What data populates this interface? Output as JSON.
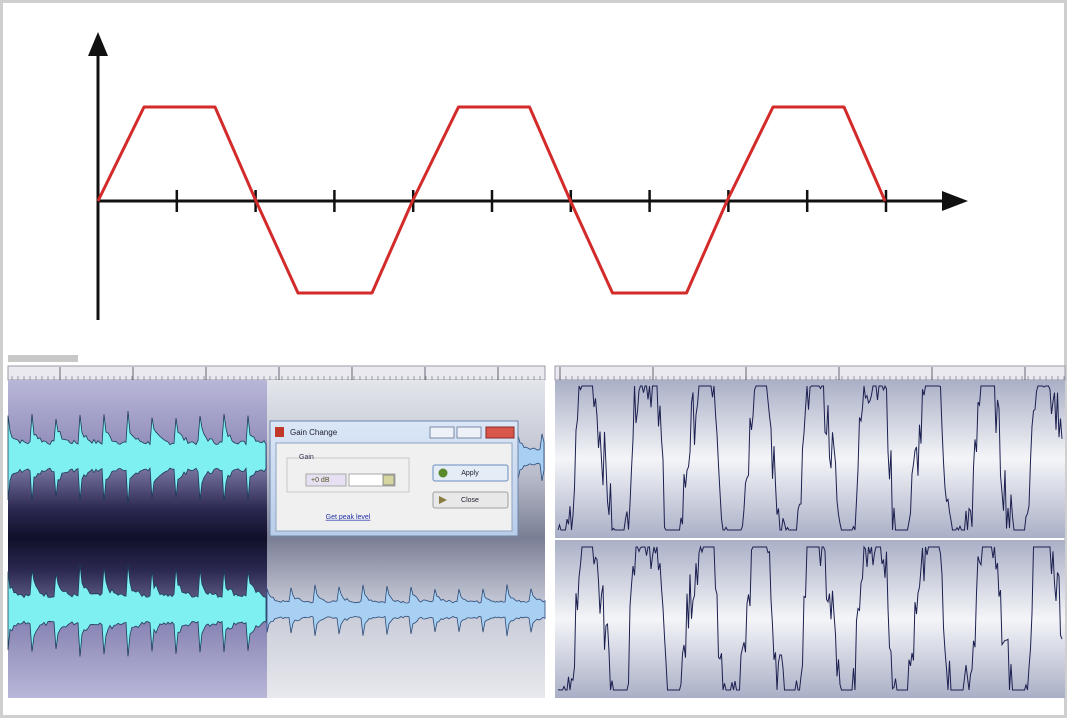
{
  "dialog": {
    "title": "Gain Change",
    "group_label": "Gain",
    "gain_value": "+0 dB",
    "peak_link": "Get peak level",
    "apply_button": "Apply",
    "close_button": "Close"
  }
}
